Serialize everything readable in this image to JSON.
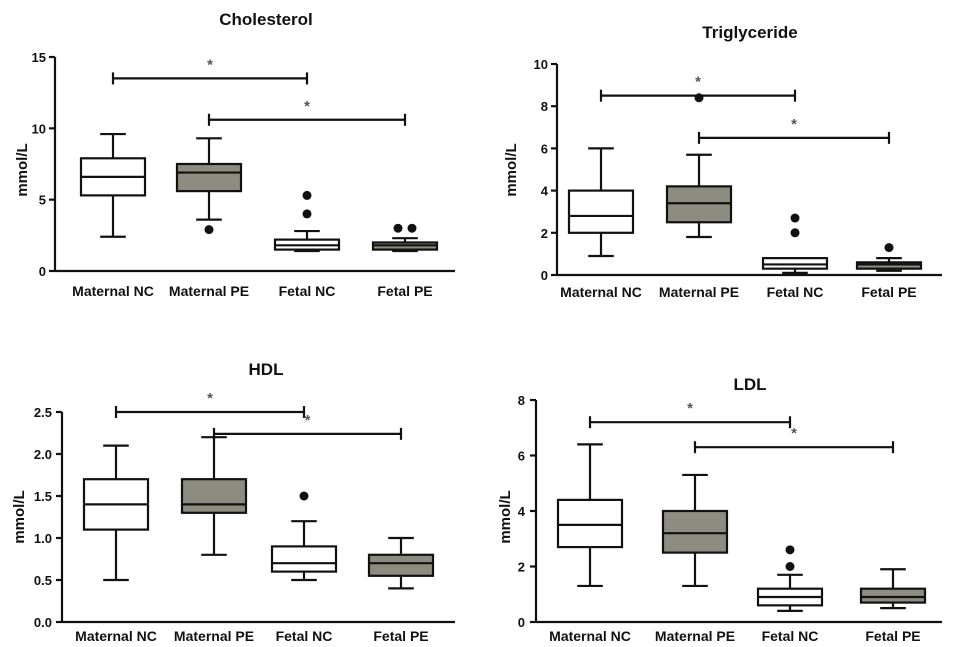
{
  "colors": {
    "nc_fill": "#ffffff",
    "pe_fill": "#8c8c80",
    "stroke": "#111111",
    "sig_star": "#555555"
  },
  "chart_data": [
    {
      "type": "box",
      "title": "Cholesterol",
      "ylabel": "mmol/L",
      "ylim": [
        0,
        15
      ],
      "yticks": [
        0,
        5,
        10,
        15
      ],
      "categories": [
        "Maternal NC",
        "Maternal PE",
        "Fetal NC",
        "Fetal PE"
      ],
      "boxes": [
        {
          "min": 2.4,
          "q1": 5.3,
          "median": 6.6,
          "q3": 7.9,
          "max": 9.6,
          "outliers": []
        },
        {
          "min": 3.6,
          "q1": 5.6,
          "median": 6.9,
          "q3": 7.5,
          "max": 9.3,
          "outliers": [
            2.9
          ]
        },
        {
          "min": 1.4,
          "q1": 1.5,
          "median": 1.8,
          "q3": 2.2,
          "max": 2.8,
          "outliers": [
            4.0,
            5.3
          ]
        },
        {
          "min": 1.4,
          "q1": 1.5,
          "median": 1.8,
          "q3": 2.0,
          "max": 2.3,
          "outliers": [
            3.0,
            3.0
          ]
        }
      ],
      "significance": [
        {
          "from": 0,
          "to": 2,
          "y": 13.5,
          "label": "*"
        },
        {
          "from": 1,
          "to": 3,
          "y": 10.6,
          "label": "*"
        }
      ]
    },
    {
      "type": "box",
      "title": "Triglyceride",
      "ylabel": "mmol/L",
      "ylim": [
        0,
        10
      ],
      "yticks": [
        0,
        2,
        4,
        6,
        8,
        10
      ],
      "categories": [
        "Maternal NC",
        "Maternal PE",
        "Fetal NC",
        "Fetal PE"
      ],
      "boxes": [
        {
          "min": 0.9,
          "q1": 2.0,
          "median": 2.8,
          "q3": 4.0,
          "max": 6.0,
          "outliers": []
        },
        {
          "min": 1.8,
          "q1": 2.5,
          "median": 3.4,
          "q3": 4.2,
          "max": 5.7,
          "outliers": [
            8.4
          ]
        },
        {
          "min": 0.1,
          "q1": 0.3,
          "median": 0.5,
          "q3": 0.8,
          "max": 0.8,
          "outliers": [
            2.0,
            2.7
          ]
        },
        {
          "min": 0.2,
          "q1": 0.3,
          "median": 0.5,
          "q3": 0.6,
          "max": 0.8,
          "outliers": [
            1.3
          ]
        }
      ],
      "significance": [
        {
          "from": 0,
          "to": 2,
          "y": 8.5,
          "label": "*"
        },
        {
          "from": 1,
          "to": 3,
          "y": 6.5,
          "label": "*"
        }
      ]
    },
    {
      "type": "box",
      "title": "HDL",
      "ylabel": "mmol/L",
      "ylim": [
        0,
        2.5
      ],
      "yticks": [
        0.0,
        0.5,
        1.0,
        1.5,
        2.0,
        2.5
      ],
      "yticklabels": [
        "0.0",
        "0.5",
        "1.0",
        "1.5",
        "2.0",
        "2.5"
      ],
      "categories": [
        "Maternal NC",
        "Maternal PE",
        "Fetal NC",
        "Fetal PE"
      ],
      "boxes": [
        {
          "min": 0.5,
          "q1": 1.1,
          "median": 1.4,
          "q3": 1.7,
          "max": 2.1,
          "outliers": []
        },
        {
          "min": 0.8,
          "q1": 1.3,
          "median": 1.4,
          "q3": 1.7,
          "max": 2.2,
          "outliers": []
        },
        {
          "min": 0.5,
          "q1": 0.6,
          "median": 0.7,
          "q3": 0.9,
          "max": 1.2,
          "outliers": [
            1.5
          ]
        },
        {
          "min": 0.4,
          "q1": 0.55,
          "median": 0.7,
          "q3": 0.8,
          "max": 1.0,
          "outliers": []
        }
      ],
      "significance": [
        {
          "from": 0,
          "to": 2,
          "y": 2.5,
          "label": "*"
        },
        {
          "from": 1,
          "to": 3,
          "y": 2.24,
          "label": "*"
        }
      ]
    },
    {
      "type": "box",
      "title": "LDL",
      "ylabel": "mmol/L",
      "ylim": [
        0,
        8
      ],
      "yticks": [
        0,
        2,
        4,
        6,
        8
      ],
      "categories": [
        "Maternal NC",
        "Maternal PE",
        "Fetal NC",
        "Fetal PE"
      ],
      "boxes": [
        {
          "min": 1.3,
          "q1": 2.7,
          "median": 3.5,
          "q3": 4.4,
          "max": 6.4,
          "outliers": []
        },
        {
          "min": 1.3,
          "q1": 2.5,
          "median": 3.2,
          "q3": 4.0,
          "max": 5.3,
          "outliers": []
        },
        {
          "min": 0.4,
          "q1": 0.6,
          "median": 0.9,
          "q3": 1.2,
          "max": 1.7,
          "outliers": [
            2.0,
            2.6
          ]
        },
        {
          "min": 0.5,
          "q1": 0.7,
          "median": 0.9,
          "q3": 1.2,
          "max": 1.9,
          "outliers": []
        }
      ],
      "significance": [
        {
          "from": 0,
          "to": 2,
          "y": 7.2,
          "label": "*"
        },
        {
          "from": 1,
          "to": 3,
          "y": 6.3,
          "label": "*"
        }
      ]
    }
  ]
}
